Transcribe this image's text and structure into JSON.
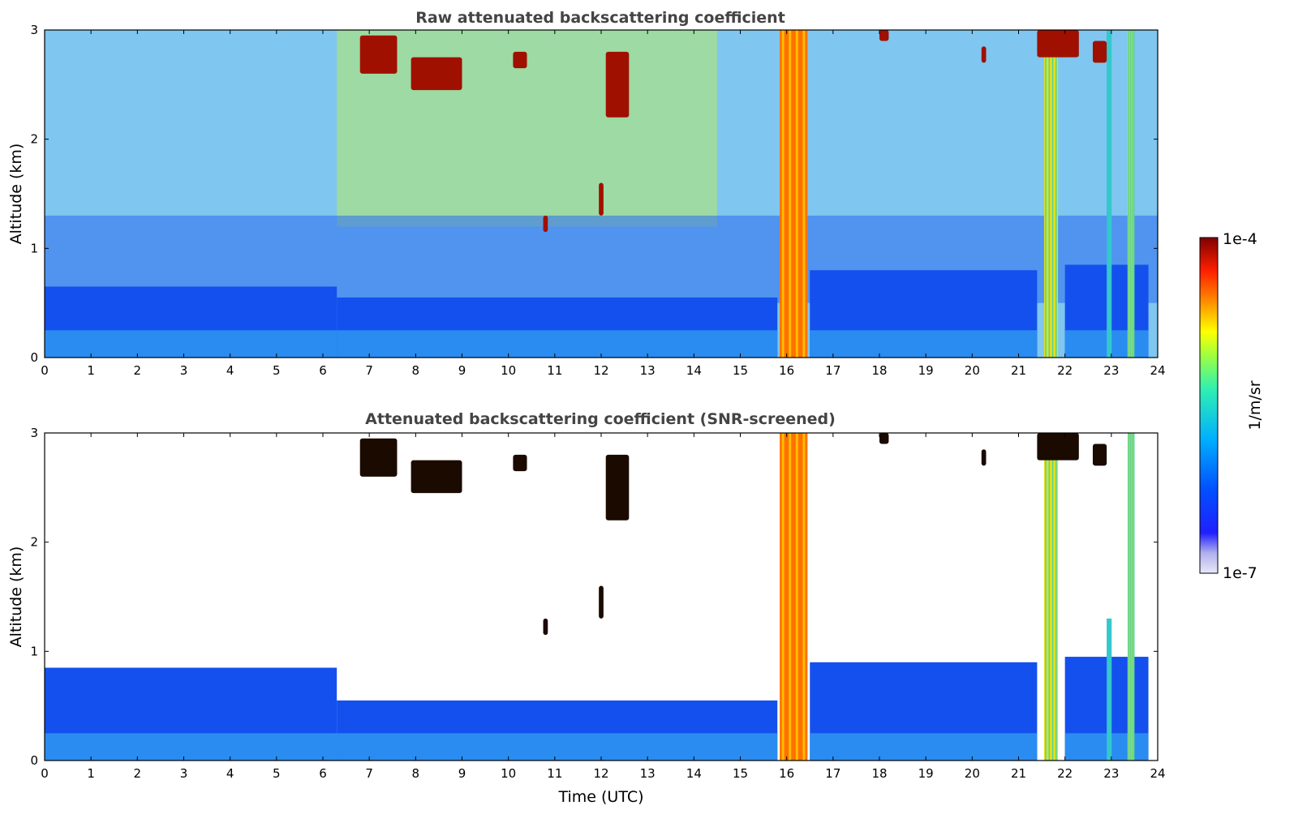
{
  "chart_data": [
    {
      "type": "heatmap",
      "title": "Raw attenuated backscattering coefficient",
      "xlabel": "",
      "ylabel": "Altitude (km)",
      "xlim": [
        0,
        24
      ],
      "ylim": [
        0,
        3
      ],
      "x_ticks": [
        "0",
        "1",
        "2",
        "3",
        "4",
        "5",
        "6",
        "7",
        "8",
        "9",
        "10",
        "11",
        "12",
        "13",
        "14",
        "15",
        "16",
        "17",
        "18",
        "19",
        "20",
        "21",
        "22",
        "23",
        "24"
      ],
      "y_ticks": [
        "0",
        "1",
        "2",
        "3"
      ],
      "background_layer": [
        {
          "time_range": [
            0,
            6.3
          ],
          "top_km": 0.65
        },
        {
          "time_range": [
            6.3,
            15.8
          ],
          "top_km": 0.55
        },
        {
          "time_range": [
            16.5,
            21.4
          ],
          "top_km": 0.8
        },
        {
          "time_range": [
            22.0,
            23.8
          ],
          "top_km": 0.85
        }
      ],
      "precipitation_columns": [
        {
          "time_range": [
            15.85,
            16.45
          ],
          "altitude_range_km": [
            0,
            3
          ],
          "level": "high"
        },
        {
          "time_range": [
            21.55,
            21.85
          ],
          "altitude_range_km": [
            0,
            3
          ],
          "level": "medium"
        },
        {
          "time_range": [
            22.9,
            23.0
          ],
          "altitude_range_km": [
            0,
            3
          ],
          "level": "low"
        },
        {
          "time_range": [
            23.35,
            23.5
          ],
          "altitude_range_km": [
            0,
            3
          ],
          "level": "medium"
        }
      ],
      "cloud_patches": [
        {
          "time_range": [
            6.8,
            7.6
          ],
          "altitude_range_km": [
            2.6,
            2.95
          ]
        },
        {
          "time_range": [
            7.9,
            9.0
          ],
          "altitude_range_km": [
            2.45,
            2.75
          ]
        },
        {
          "time_range": [
            10.1,
            10.4
          ],
          "altitude_range_km": [
            2.65,
            2.8
          ]
        },
        {
          "time_range": [
            12.1,
            12.6
          ],
          "altitude_range_km": [
            2.2,
            2.8
          ]
        },
        {
          "time_range": [
            10.75,
            10.85
          ],
          "altitude_range_km": [
            1.15,
            1.3
          ]
        },
        {
          "time_range": [
            11.95,
            12.05
          ],
          "altitude_range_km": [
            1.3,
            1.6
          ]
        },
        {
          "time_range": [
            18.0,
            18.2
          ],
          "altitude_range_km": [
            2.9,
            3.0
          ]
        },
        {
          "time_range": [
            20.2,
            20.3
          ],
          "altitude_range_km": [
            2.7,
            2.85
          ]
        },
        {
          "time_range": [
            21.4,
            22.3
          ],
          "altitude_range_km": [
            2.75,
            3.0
          ]
        },
        {
          "time_range": [
            22.6,
            22.9
          ],
          "altitude_range_km": [
            2.7,
            2.9
          ]
        }
      ]
    },
    {
      "type": "heatmap",
      "title": "Attenuated backscattering coefficient (SNR-screened)",
      "xlabel": "Time (UTC)",
      "ylabel": "Altitude (km)",
      "xlim": [
        0,
        24
      ],
      "ylim": [
        0,
        3
      ],
      "x_ticks": [
        "0",
        "1",
        "2",
        "3",
        "4",
        "5",
        "6",
        "7",
        "8",
        "9",
        "10",
        "11",
        "12",
        "13",
        "14",
        "15",
        "16",
        "17",
        "18",
        "19",
        "20",
        "21",
        "22",
        "23",
        "24"
      ],
      "y_ticks": [
        "0",
        "1",
        "2",
        "3"
      ],
      "background_layer": [
        {
          "time_range": [
            0,
            6.3
          ],
          "top_km": 0.85
        },
        {
          "time_range": [
            6.3,
            15.8
          ],
          "top_km": 0.55
        },
        {
          "time_range": [
            16.5,
            21.4
          ],
          "top_km": 0.9
        },
        {
          "time_range": [
            22.0,
            23.8
          ],
          "top_km": 0.95
        }
      ],
      "precipitation_columns": [
        {
          "time_range": [
            15.85,
            16.45
          ],
          "altitude_range_km": [
            0,
            3
          ],
          "level": "high"
        },
        {
          "time_range": [
            21.55,
            21.85
          ],
          "altitude_range_km": [
            0,
            3
          ],
          "level": "medium"
        },
        {
          "time_range": [
            22.9,
            23.0
          ],
          "altitude_range_km": [
            0,
            1.3
          ],
          "level": "low"
        },
        {
          "time_range": [
            23.35,
            23.5
          ],
          "altitude_range_km": [
            0,
            3
          ],
          "level": "medium"
        }
      ],
      "cloud_patches": [
        {
          "time_range": [
            6.8,
            7.6
          ],
          "altitude_range_km": [
            2.6,
            2.95
          ]
        },
        {
          "time_range": [
            7.9,
            9.0
          ],
          "altitude_range_km": [
            2.45,
            2.75
          ]
        },
        {
          "time_range": [
            10.1,
            10.4
          ],
          "altitude_range_km": [
            2.65,
            2.8
          ]
        },
        {
          "time_range": [
            12.1,
            12.6
          ],
          "altitude_range_km": [
            2.2,
            2.8
          ]
        },
        {
          "time_range": [
            10.75,
            10.85
          ],
          "altitude_range_km": [
            1.15,
            1.3
          ]
        },
        {
          "time_range": [
            11.95,
            12.05
          ],
          "altitude_range_km": [
            1.3,
            1.6
          ]
        },
        {
          "time_range": [
            18.0,
            18.2
          ],
          "altitude_range_km": [
            2.9,
            3.0
          ]
        },
        {
          "time_range": [
            20.2,
            20.3
          ],
          "altitude_range_km": [
            2.7,
            2.85
          ]
        },
        {
          "time_range": [
            21.4,
            22.3
          ],
          "altitude_range_km": [
            2.75,
            3.0
          ]
        },
        {
          "time_range": [
            22.6,
            22.9
          ],
          "altitude_range_km": [
            2.7,
            2.9
          ]
        }
      ]
    }
  ],
  "colorbar": {
    "label": "1/m/sr",
    "max_label": "1e-4",
    "min_label": "1e-7",
    "scale": "log",
    "colormap": [
      "#e8e8f8",
      "#c8c8f0",
      "#9898e8",
      "#5050f0",
      "#0000ff",
      "#0040ff",
      "#0080ff",
      "#00c0ff",
      "#10e0d0",
      "#40f0a0",
      "#80ff60",
      "#c0ff30",
      "#ffff00",
      "#ffc000",
      "#ff8000",
      "#ff4000",
      "#e00000",
      "#a00000",
      "#800000"
    ]
  }
}
